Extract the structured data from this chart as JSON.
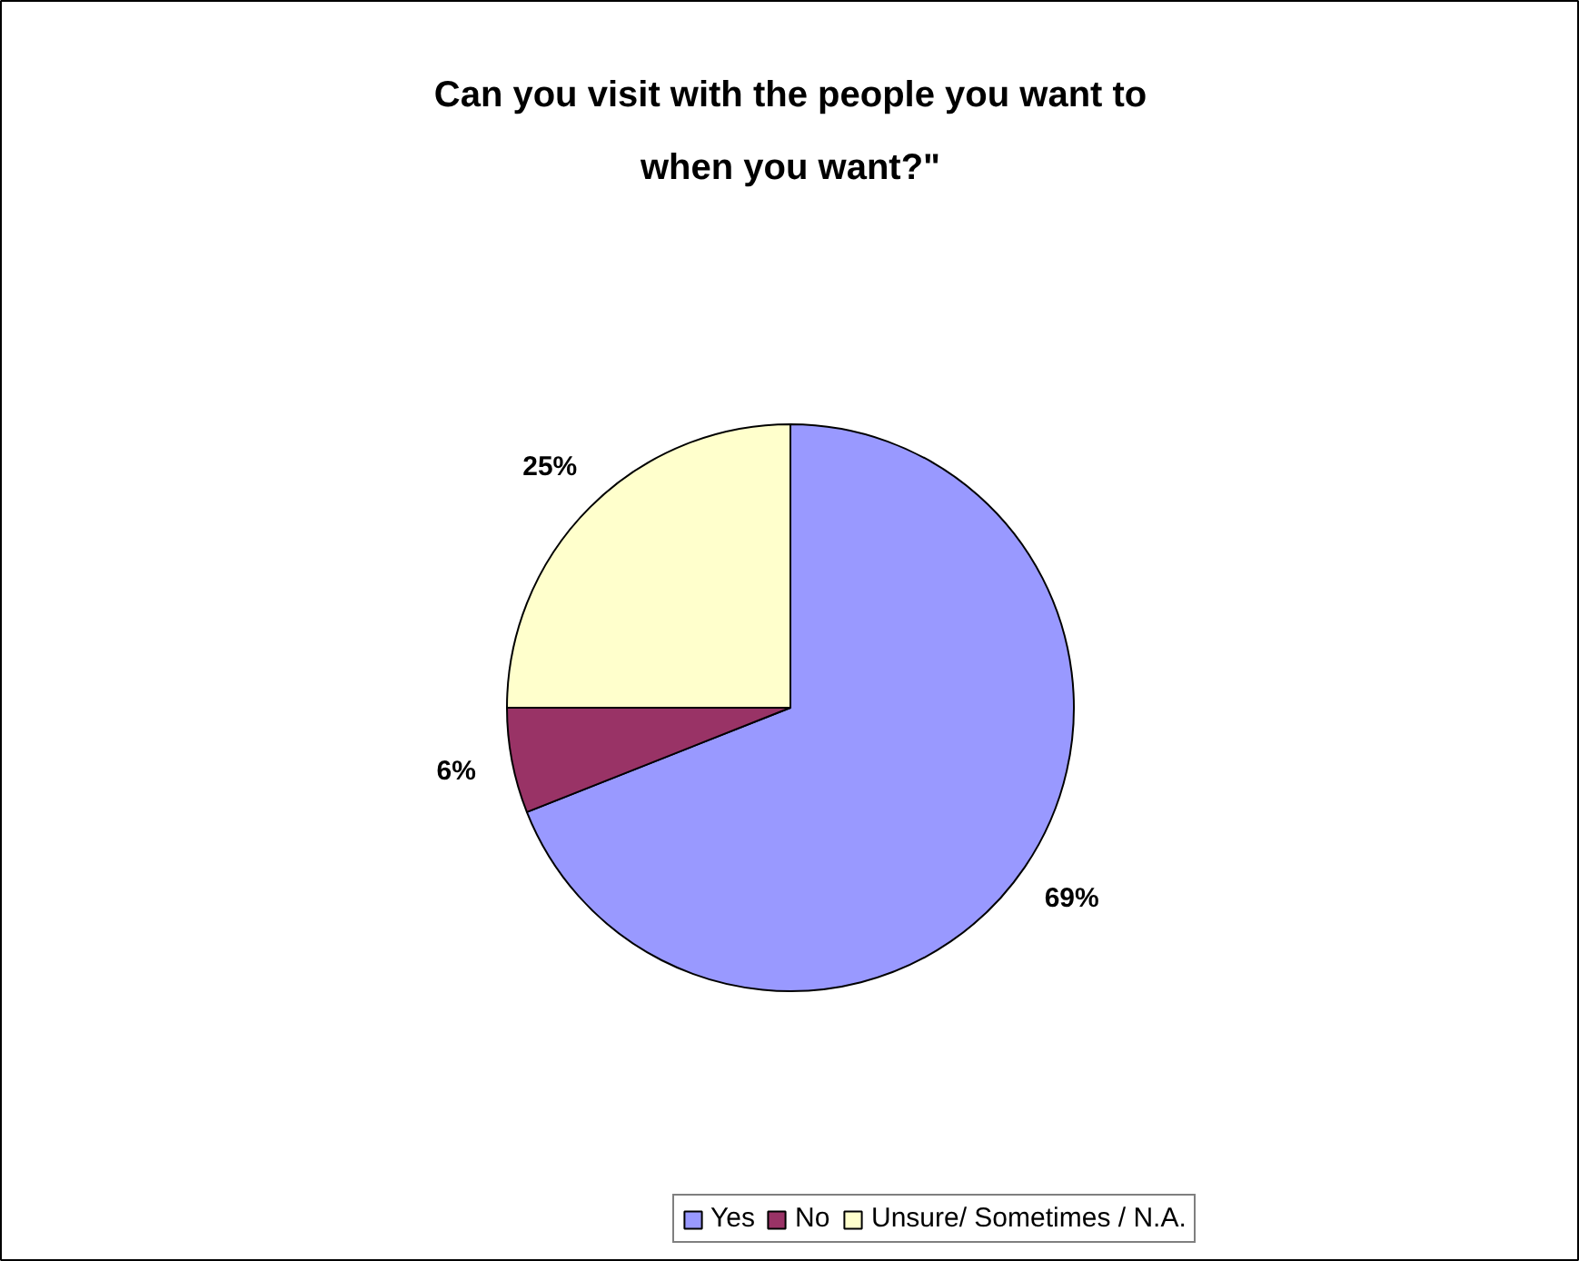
{
  "chart_data": {
    "type": "pie",
    "title": "Can you visit with the people you want to when you want?\"",
    "categories": [
      "Yes",
      "No",
      "Unsure/ Sometimes / N.A."
    ],
    "values": [
      69,
      6,
      25
    ],
    "colors": [
      "#9999ff",
      "#993366",
      "#ffffcc"
    ],
    "value_labels": [
      "69%",
      "6%",
      "25%"
    ],
    "legend": "bottom"
  }
}
